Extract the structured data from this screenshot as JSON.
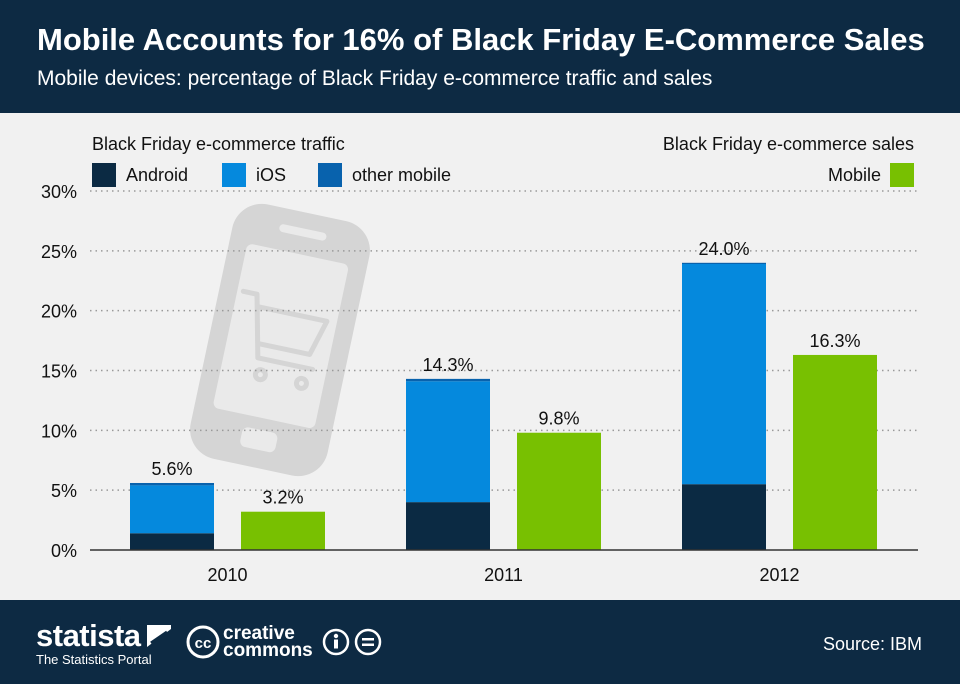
{
  "header": {
    "title": "Mobile Accounts for 16% of Black Friday E-Commerce Sales",
    "subtitle": "Mobile devices: percentage of Black Friday e-commerce traffic and sales"
  },
  "legend": {
    "traffic_heading": "Black Friday e-commerce traffic",
    "sales_heading": "Black Friday e-commerce sales",
    "items": [
      {
        "label": "Android",
        "color": "#0b2a43"
      },
      {
        "label": "iOS",
        "color": "#0589dd"
      },
      {
        "label": "other mobile",
        "color": "#0862ad"
      }
    ],
    "sales_item": {
      "label": "Mobile",
      "color": "#78c001"
    }
  },
  "chart_data": {
    "type": "bar",
    "categories": [
      "2010",
      "2011",
      "2012"
    ],
    "traffic_series": [
      {
        "name": "Android",
        "values": [
          1.4,
          4.0,
          5.5
        ],
        "color": "#0b2a43"
      },
      {
        "name": "iOS",
        "values": [
          4.0,
          10.1,
          18.4
        ],
        "color": "#0589dd"
      },
      {
        "name": "other mobile",
        "values": [
          0.2,
          0.2,
          0.1
        ],
        "color": "#0862ad"
      }
    ],
    "traffic_totals": [
      5.6,
      14.3,
      24.0
    ],
    "traffic_total_labels": [
      "5.6%",
      "14.3%",
      "24.0%"
    ],
    "sales_series": {
      "name": "Mobile",
      "values": [
        3.2,
        9.8,
        16.3
      ],
      "color": "#78c001"
    },
    "sales_labels": [
      "3.2%",
      "9.8%",
      "16.3%"
    ],
    "ylim": [
      0,
      30
    ],
    "yticks": [
      0,
      5,
      10,
      15,
      20,
      25,
      30
    ],
    "ytick_labels": [
      "0%",
      "5%",
      "10%",
      "15%",
      "20%",
      "25%",
      "30%"
    ],
    "grid": true,
    "legend_position": "top"
  },
  "footer": {
    "brand_name": "statista",
    "brand_tagline": "The Statistics Portal",
    "license_text": "creative commons",
    "license_line1": "creative",
    "license_line2": "commons",
    "source": "Source: IBM"
  }
}
